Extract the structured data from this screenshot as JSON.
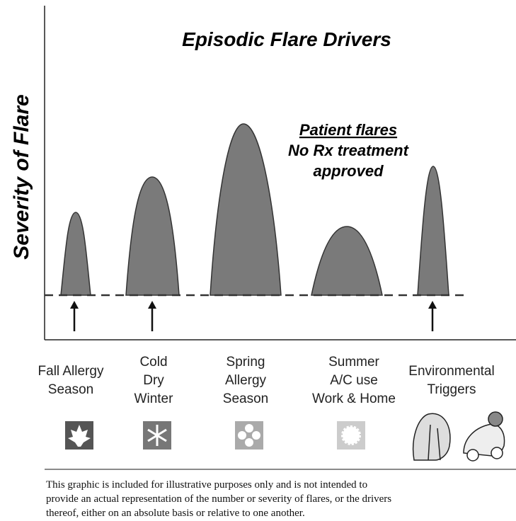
{
  "title": "Episodic Flare Drivers",
  "y_axis_label": "Severity of Flare",
  "annotation": {
    "heading": "Patient flares",
    "lines": [
      "No Rx treatment",
      "approved"
    ]
  },
  "drivers": [
    {
      "lines": [
        "Fall Allergy",
        "Season"
      ]
    },
    {
      "lines": [
        "Cold",
        "Dry",
        "Winter"
      ]
    },
    {
      "lines": [
        "Spring",
        "Allergy",
        "Season"
      ]
    },
    {
      "lines": [
        "Summer",
        "A/C use",
        "Work & Home"
      ]
    },
    {
      "lines": [
        "Environmental",
        "Triggers"
      ]
    }
  ],
  "disclaimer": [
    "This graphic is included for illustrative purposes only and is not intended to",
    "provide an actual representation of the number or severity of flares, or the drivers",
    "thereof, either on an absolute basis or relative to one another."
  ]
}
